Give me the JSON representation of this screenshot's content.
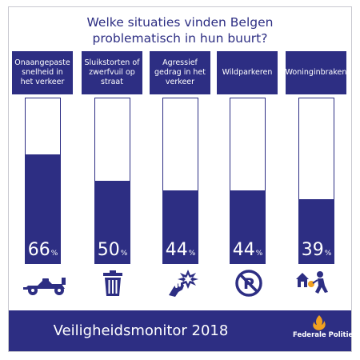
{
  "header": {
    "title_line1": "Welke situaties vinden Belgen",
    "title_line2": "problematisch in hun buurt?"
  },
  "chart_data": {
    "type": "bar",
    "categories": [
      "Onaangepaste snelheid in het verkeer",
      "Sluikstorten of zwerfvuil op straat",
      "Agressief gedrag in het verkeer",
      "Wildparkeren",
      "Woninginbraken"
    ],
    "values": [
      66,
      50,
      44,
      44,
      39
    ],
    "value_unit": "%",
    "ylim": [
      0,
      100
    ],
    "bar_color": "#2d2e83"
  },
  "icons": [
    "race-car-icon",
    "trash-bin-icon",
    "fist-punch-icon",
    "no-parking-icon",
    "burglar-icon"
  ],
  "footer": {
    "title": "Veiligheidsmonitor 2018",
    "logo_text": "Federale Politie"
  },
  "colors": {
    "primary": "#2d2e83",
    "background": "#ffffff",
    "flame": "#f0a020"
  }
}
